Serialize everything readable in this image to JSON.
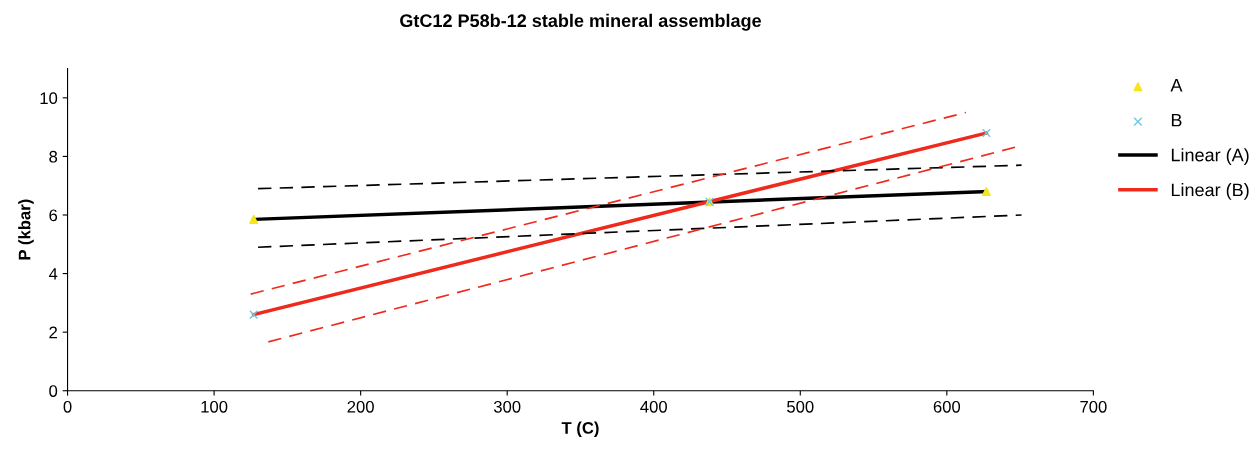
{
  "chart_data": {
    "type": "scatter",
    "title": "GtC12 P58b-12 stable mineral assemblage",
    "xlabel": "T (C)",
    "ylabel": "P (kbar)",
    "xlim": [
      0,
      700
    ],
    "xticks": [
      0,
      100,
      200,
      300,
      400,
      500,
      600,
      700
    ],
    "ylim": [
      0,
      11
    ],
    "yticks": [
      0,
      2,
      4,
      6,
      8,
      10
    ],
    "grid": false,
    "legend": "right",
    "series": [
      {
        "name": "A",
        "marker": "triangle",
        "color": "#f5e61a",
        "x": [
          127,
          438,
          627
        ],
        "values": [
          5.85,
          6.45,
          6.8
        ]
      },
      {
        "name": "B",
        "marker": "cross",
        "color": "#6ec6e6",
        "x": [
          127,
          438,
          627
        ],
        "values": [
          2.6,
          6.45,
          8.8
        ]
      },
      {
        "name": "Linear (A)",
        "type": "line",
        "line_style": "solid",
        "color": "#000000",
        "x": [
          127,
          627
        ],
        "values": [
          5.85,
          6.8
        ]
      },
      {
        "name": "Linear (B)",
        "type": "line",
        "line_style": "solid",
        "color": "#ee2a1c",
        "x": [
          127,
          627
        ],
        "values": [
          2.6,
          8.8
        ]
      },
      {
        "type": "line",
        "line_style": "dashed",
        "color": "#000000",
        "x": [
          130,
          651
        ],
        "values": [
          6.9,
          7.7
        ]
      },
      {
        "type": "line",
        "line_style": "dashed",
        "color": "#000000",
        "x": [
          130,
          651
        ],
        "values": [
          4.9,
          6.0
        ]
      },
      {
        "type": "line",
        "line_style": "dashed",
        "color": "#ee2a1c",
        "x": [
          125,
          613
        ],
        "values": [
          3.3,
          9.5
        ]
      },
      {
        "type": "line",
        "line_style": "dashed",
        "color": "#ee2a1c",
        "x": [
          137,
          648
        ],
        "values": [
          1.67,
          8.33
        ]
      }
    ]
  }
}
